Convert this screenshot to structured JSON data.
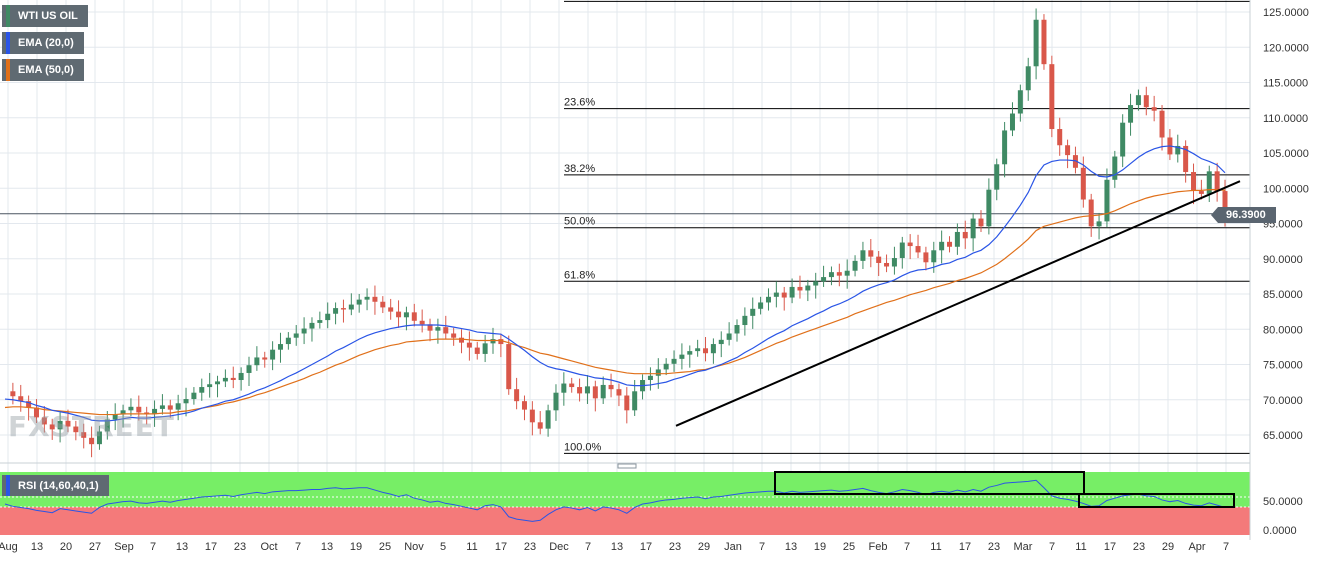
{
  "badges": {
    "symbol": "WTI US OIL",
    "ema20": "EMA (20,0)",
    "ema50": "EMA (50,0)",
    "rsi": "RSI (14,60,40,1)"
  },
  "colors": {
    "ema20": "#2a55e6",
    "ema50": "#e0701a",
    "bull": "#3f8a64",
    "bear": "#d9574a",
    "rsi_line": "#2a55e6",
    "rsi_upper_zone": "#77ee66",
    "rsi_lower_zone": "#f47a7a",
    "trendline": "#000000"
  },
  "watermark": "FXSTREET",
  "current_price": "96.3900",
  "fib_labels": [
    "23.6%",
    "38.2%",
    "50.0%",
    "61.8%",
    "100.0%"
  ],
  "x_tick_labels": [
    "Aug",
    "13",
    "20",
    "27",
    "Sep",
    "7",
    "13",
    "17",
    "23",
    "Oct",
    "7",
    "13",
    "19",
    "25",
    "Nov",
    "5",
    "11",
    "17",
    "23",
    "Dec",
    "7",
    "13",
    "17",
    "23",
    "29",
    "Jan",
    "7",
    "13",
    "19",
    "25",
    "Feb",
    "7",
    "11",
    "17",
    "23",
    "Mar",
    "7",
    "11",
    "17",
    "23",
    "29",
    "Apr",
    "7"
  ],
  "y_tick_labels": [
    "125.0000",
    "120.0000",
    "115.0000",
    "110.0000",
    "105.0000",
    "100.0000",
    "95.0000",
    "90.0000",
    "85.0000",
    "80.0000",
    "75.0000",
    "70.0000",
    "65.0000"
  ],
  "rsi_tick_labels": [
    "50.0000",
    "0.0000"
  ],
  "chart_data": {
    "type": "candlestick",
    "title": "WTI US OIL",
    "ylim": [
      61,
      127
    ],
    "fibonacci_levels": [
      {
        "label": "23.6%",
        "value": 111.3
      },
      {
        "label": "38.2%",
        "value": 101.9
      },
      {
        "label": "50.0%",
        "value": 94.4
      },
      {
        "label": "61.8%",
        "value": 86.8
      },
      {
        "label": "100.0%",
        "value": 62.4
      }
    ],
    "swing_high": 126.5,
    "horizontal_levels": [
      126.5,
      96.39
    ],
    "trendline": {
      "from": {
        "x": "Dec 17",
        "y": 66.3
      },
      "to": {
        "x": "Apr 7",
        "y": 101.0
      }
    },
    "close_series": [
      71.2,
      70.5,
      69.8,
      68.9,
      67.5,
      66.5,
      65.8,
      67.0,
      66.2,
      65.4,
      64.6,
      63.7,
      65.5,
      67.2,
      67.9,
      68.5,
      69.0,
      68.2,
      68.0,
      68.7,
      69.2,
      68.6,
      69.5,
      70.1,
      71.0,
      71.8,
      72.2,
      72.6,
      73.1,
      72.8,
      73.8,
      74.9,
      76.0,
      75.7,
      77.1,
      77.9,
      78.8,
      79.4,
      80.1,
      80.9,
      81.3,
      82.2,
      83.0,
      82.8,
      83.5,
      84.2,
      84.6,
      83.9,
      83.1,
      82.5,
      81.7,
      82.4,
      81.2,
      80.7,
      79.8,
      80.3,
      79.4,
      78.8,
      78.1,
      77.4,
      76.5,
      78.0,
      78.6,
      77.9,
      71.5,
      69.8,
      68.6,
      66.8,
      65.9,
      68.5,
      71.0,
      72.3,
      71.8,
      70.9,
      71.9,
      70.2,
      72.1,
      71.5,
      70.6,
      68.5,
      71.2,
      72.8,
      73.4,
      74.3,
      75.1,
      75.8,
      76.4,
      76.9,
      77.3,
      76.6,
      77.9,
      78.5,
      79.4,
      80.6,
      81.9,
      82.9,
      83.8,
      84.6,
      85.2,
      84.5,
      86.0,
      85.5,
      86.2,
      86.8,
      87.4,
      88.1,
      87.6,
      88.3,
      89.7,
      91.2,
      90.3,
      89.4,
      88.9,
      90.1,
      92.3,
      91.8,
      90.9,
      89.5,
      91.2,
      92.4,
      91.7,
      93.8,
      92.9,
      95.7,
      94.6,
      99.8,
      103.4,
      108.2,
      110.6,
      113.9,
      117.3,
      123.9,
      117.6,
      108.4,
      106.1,
      104.7,
      102.9,
      98.4,
      94.6,
      95.3,
      101.2,
      104.5,
      109.3,
      111.8,
      113.2,
      111.5,
      111.0,
      107.2,
      104.8,
      106.0,
      102.3,
      99.6,
      99.2,
      102.4,
      99.6,
      96.4
    ],
    "ema20_series": [
      70.1,
      70.0,
      69.8,
      69.6,
      69.2,
      68.9,
      68.5,
      68.3,
      68.1,
      67.8,
      67.5,
      67.1,
      67.0,
      67.0,
      67.1,
      67.3,
      67.5,
      67.4,
      67.4,
      67.5,
      67.6,
      67.7,
      67.9,
      68.1,
      68.4,
      68.8,
      69.1,
      69.4,
      69.8,
      70.0,
      70.4,
      70.8,
      71.3,
      71.7,
      72.2,
      72.7,
      73.3,
      73.8,
      74.4,
      75.0,
      75.6,
      76.2,
      76.9,
      77.4,
      78.0,
      78.6,
      79.1,
      79.5,
      79.8,
      80.1,
      80.3,
      80.5,
      80.6,
      80.6,
      80.6,
      80.6,
      80.5,
      80.3,
      80.1,
      79.9,
      79.6,
      79.5,
      79.4,
      79.3,
      78.6,
      77.8,
      77.0,
      76.1,
      75.3,
      74.7,
      74.4,
      74.2,
      73.9,
      73.6,
      73.4,
      73.1,
      73.0,
      72.8,
      72.5,
      72.1,
      72.0,
      72.0,
      72.1,
      72.3,
      72.5,
      72.9,
      73.2,
      73.6,
      74.0,
      74.2,
      74.6,
      75.0,
      75.5,
      76.0,
      76.7,
      77.3,
      78.0,
      78.7,
      79.3,
      79.8,
      80.5,
      81.0,
      81.5,
      82.1,
      82.6,
      83.2,
      83.6,
      84.1,
      84.7,
      85.4,
      85.9,
      86.3,
      86.6,
      87.0,
      87.6,
      88.1,
      88.4,
      88.5,
      88.8,
      89.2,
      89.4,
      89.9,
      90.2,
      90.8,
      91.2,
      92.0,
      93.1,
      94.5,
      96.0,
      97.6,
      99.4,
      101.8,
      103.3,
      103.8,
      104.0,
      104.0,
      103.9,
      103.3,
      102.4,
      101.7,
      101.6,
      101.9,
      102.6,
      103.5,
      104.4,
      105.1,
      105.6,
      105.9,
      106.0,
      105.8,
      105.5,
      104.9,
      104.2,
      103.8,
      103.3,
      102.2
    ],
    "ema50_series": [
      68.9,
      69.0,
      69.0,
      68.9,
      68.8,
      68.6,
      68.5,
      68.4,
      68.3,
      68.2,
      68.1,
      68.0,
      67.9,
      67.9,
      67.9,
      68.0,
      68.0,
      68.0,
      68.0,
      68.0,
      68.1,
      68.1,
      68.3,
      68.4,
      68.6,
      68.8,
      69.0,
      69.2,
      69.5,
      69.7,
      70.0,
      70.3,
      70.7,
      71.0,
      71.4,
      71.8,
      72.2,
      72.6,
      73.0,
      73.5,
      73.9,
      74.4,
      74.9,
      75.3,
      75.8,
      76.3,
      76.7,
      77.1,
      77.4,
      77.7,
      77.9,
      78.2,
      78.3,
      78.4,
      78.5,
      78.6,
      78.6,
      78.6,
      78.6,
      78.5,
      78.4,
      78.4,
      78.4,
      78.4,
      78.1,
      77.7,
      77.4,
      77.0,
      76.6,
      76.4,
      76.1,
      75.8,
      75.5,
      75.2,
      74.9,
      74.6,
      74.4,
      74.2,
      74.0,
      73.8,
      73.7,
      73.7,
      73.7,
      73.7,
      73.7,
      73.8,
      73.9,
      74.0,
      74.2,
      74.3,
      74.6,
      74.9,
      75.2,
      75.6,
      76.0,
      76.5,
      77.0,
      77.5,
      78.0,
      78.4,
      78.9,
      79.3,
      79.7,
      80.1,
      80.5,
      80.9,
      81.3,
      81.7,
      82.2,
      82.6,
      83.0,
      83.4,
      83.8,
      84.1,
      84.5,
      84.9,
      85.2,
      85.5,
      85.9,
      86.2,
      86.5,
      86.9,
      87.2,
      87.6,
      88.0,
      88.6,
      89.2,
      90.0,
      90.9,
      91.8,
      92.8,
      94.0,
      94.6,
      94.9,
      95.2,
      95.5,
      95.8,
      96.0,
      96.1,
      96.2,
      96.4,
      96.8,
      97.3,
      97.8,
      98.2,
      98.6,
      98.9,
      99.1,
      99.3,
      99.5,
      99.6,
      99.7,
      99.7,
      99.8,
      99.8,
      99.7
    ],
    "rsi": {
      "name": "RSI (14,60,40,1)",
      "ylim": [
        0,
        100
      ],
      "upper": 60,
      "lower": 40,
      "values": [
        50,
        46,
        44,
        42,
        39,
        37,
        35,
        42,
        40,
        38,
        36,
        34,
        44,
        50,
        52,
        54,
        55,
        52,
        51,
        53,
        55,
        53,
        56,
        58,
        60,
        62,
        63,
        64,
        65,
        63,
        66,
        68,
        70,
        68,
        71,
        72,
        73,
        73,
        74,
        75,
        75,
        77,
        78,
        76,
        77,
        78,
        78,
        74,
        70,
        67,
        63,
        66,
        60,
        57,
        53,
        55,
        51,
        49,
        46,
        43,
        40,
        47,
        49,
        45,
        28,
        24,
        22,
        20,
        22,
        32,
        40,
        45,
        43,
        40,
        44,
        38,
        45,
        43,
        40,
        34,
        44,
        50,
        52,
        55,
        57,
        58,
        60,
        61,
        62,
        59,
        62,
        63,
        65,
        67,
        69,
        70,
        71,
        72,
        72,
        69,
        72,
        70,
        71,
        72,
        73,
        74,
        72,
        73,
        75,
        77,
        73,
        70,
        68,
        71,
        75,
        73,
        70,
        66,
        70,
        72,
        70,
        74,
        71,
        75,
        72,
        79,
        82,
        86,
        87,
        88,
        89,
        91,
        78,
        64,
        60,
        58,
        55,
        51,
        46,
        47,
        56,
        60,
        64,
        66,
        67,
        64,
        63,
        57,
        54,
        56,
        51,
        48,
        47,
        52,
        48,
        44
      ]
    }
  }
}
